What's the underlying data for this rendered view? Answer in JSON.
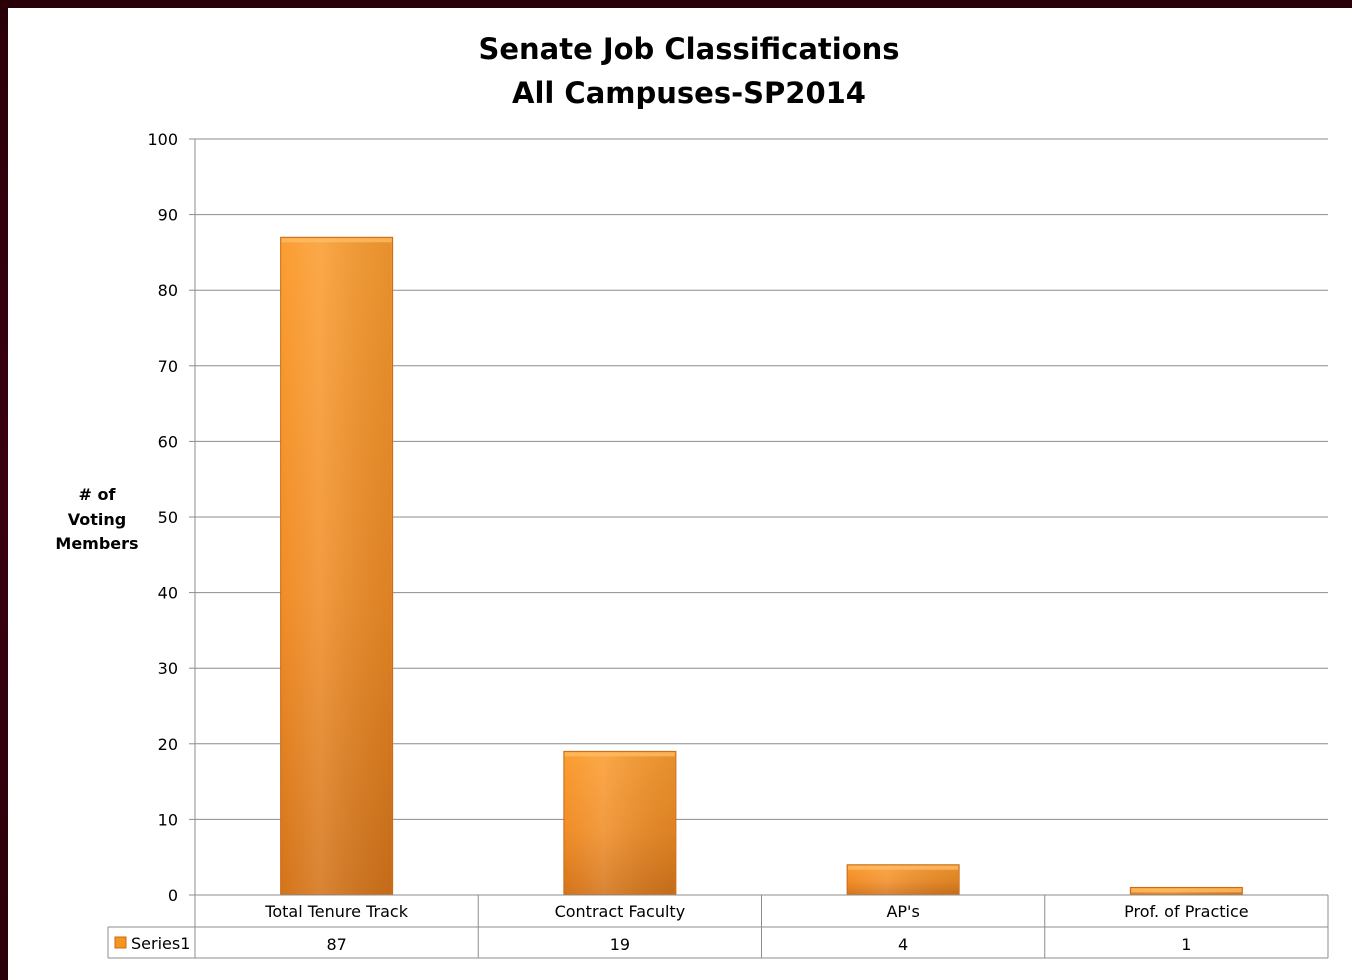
{
  "chart_data": {
    "type": "bar",
    "title": [
      "Senate Job Classifications",
      "All Campuses-SP2014"
    ],
    "ylabel": [
      "# of",
      "Voting",
      "Members"
    ],
    "xlabel": "",
    "categories": [
      "Total Tenure Track",
      "Contract Faculty",
      "AP's",
      "Prof. of Practice"
    ],
    "series": [
      {
        "name": "Series1",
        "values": [
          87,
          19,
          4,
          1
        ]
      }
    ],
    "ylim": [
      0,
      100
    ],
    "yticks": [
      0,
      10,
      20,
      30,
      40,
      50,
      60,
      70,
      80,
      90,
      100
    ],
    "grid": true,
    "legend": "data-table",
    "bar_color": "#f7941d"
  }
}
